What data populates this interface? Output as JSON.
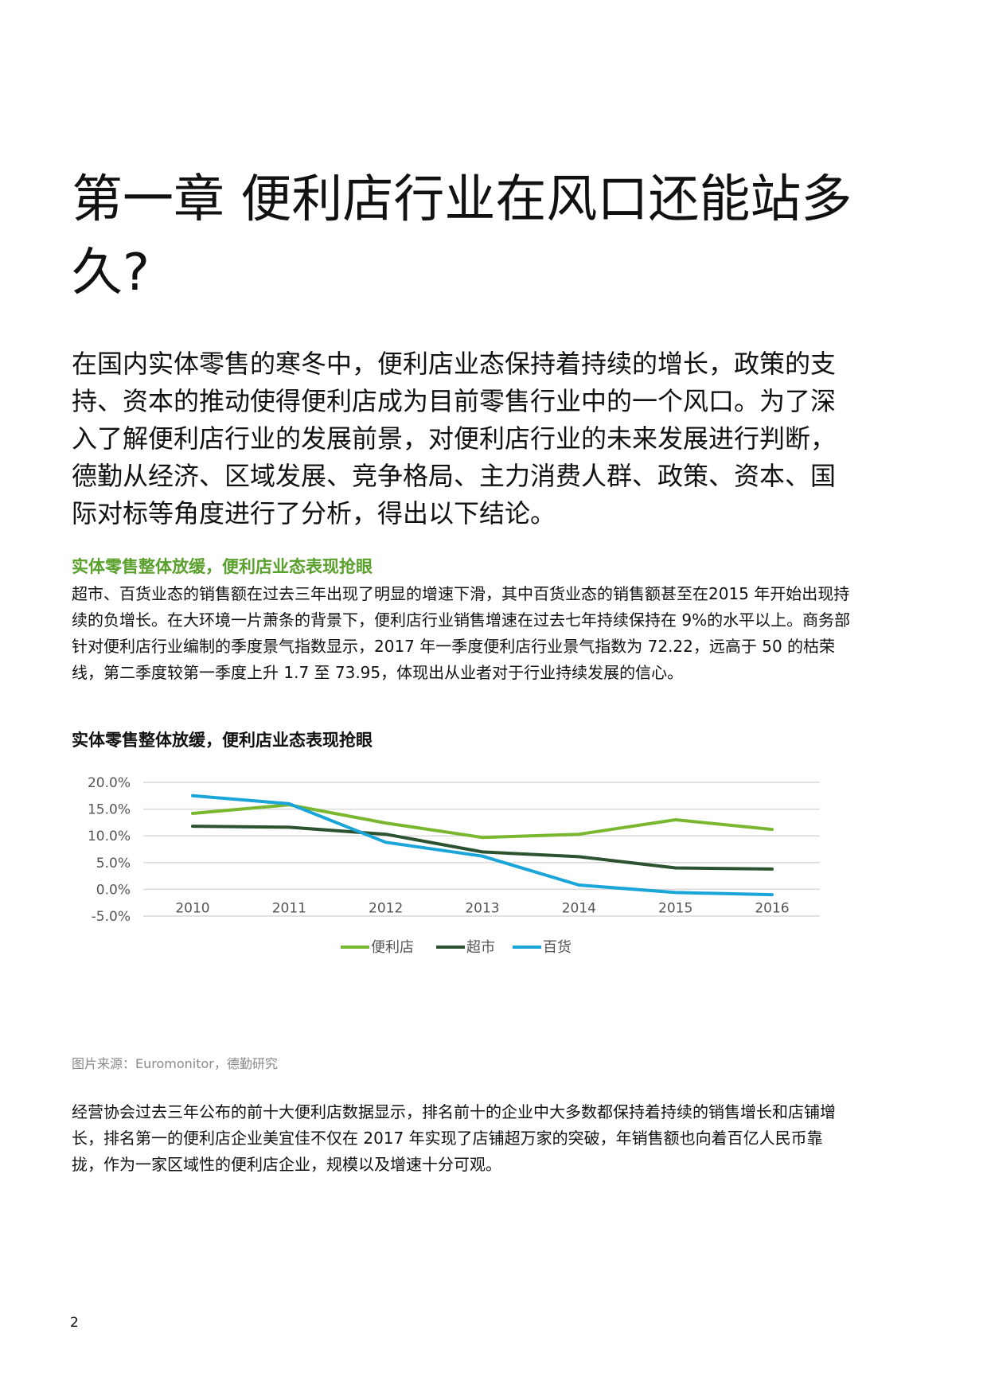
{
  "title": "第一章 便利店行业在风口还能站多久?",
  "intro": "在国内实体零售的寒冬中，便利店业态保持着持续的增长，政策的支持、资本的推动使得便利店成为目前零售行业中的一个风口。为了深入了解便利店行业的发展前景，对便利店行业的未来发展进行判断，德勤从经济、区域发展、竞争格局、主力消费人群、政策、资本、国际对标等角度进行了分析，得出以下结论。",
  "section": {
    "heading": "实体零售整体放缓，便利店业态表现抢眼",
    "body": "超市、百货业态的销售额在过去三年出现了明显的增速下滑，其中百货业态的销售额甚至在2015 年开始出现持续的负增长。在大环境一片萧条的背景下，便利店行业销售增速在过去七年持续保持在 9%的水平以上。商务部针对便利店行业编制的季度景气指数显示，2017 年一季度便利店行业景气指数为 72.22，远高于 50 的枯荣线，第二季度较第一季度上升 1.7 至 73.95，体现出从业者对于行业持续发展的信心。"
  },
  "chart_data": {
    "type": "line",
    "title": "实体零售整体放缓，便利店业态表现抢眼",
    "xlabel": "",
    "ylabel": "",
    "categories": [
      "2010",
      "2011",
      "2012",
      "2013",
      "2014",
      "2015",
      "2016"
    ],
    "yticks": [
      "20.0%",
      "15.0%",
      "10.0%",
      "5.0%",
      "0.0%",
      "-5.0%"
    ],
    "ylim": [
      -5,
      20
    ],
    "grid": true,
    "legend_position": "bottom",
    "series": [
      {
        "name": "便利店",
        "color": "#7ab730",
        "values": [
          14.2,
          15.8,
          12.4,
          9.7,
          10.3,
          13.0,
          11.2
        ]
      },
      {
        "name": "超市",
        "color": "#2d5230",
        "values": [
          11.8,
          11.6,
          10.3,
          7.0,
          6.1,
          4.0,
          3.8
        ]
      },
      {
        "name": "百货",
        "color": "#1aa5d8",
        "values": [
          17.5,
          16.0,
          8.8,
          6.2,
          0.8,
          -0.6,
          -1.0
        ]
      }
    ]
  },
  "source": "图片来源：Euromonitor，德勤研究",
  "closing": "经营协会过去三年公布的前十大便利店数据显示，排名前十的企业中大多数都保持着持续的销售增长和店铺增长，排名第一的便利店企业美宜佳不仅在 2017 年实现了店铺超万家的突破，年销售额也向着百亿人民币靠拢，作为一家区域性的便利店企业，规模以及增速十分可观。",
  "page_number": "2"
}
